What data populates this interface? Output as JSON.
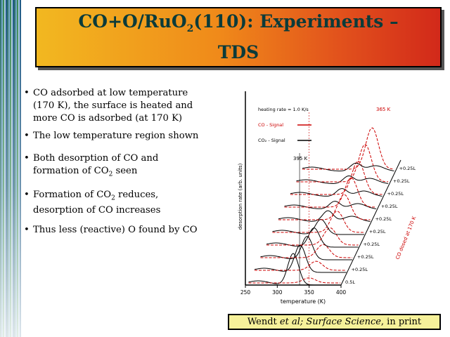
{
  "slide": {
    "title_line1_pre": "CO+O/RuO",
    "title_sub": "2",
    "title_line1_post": "(110): Experiments –",
    "title_line2": "TDS",
    "bullets": [
      {
        "line1": "CO adsorbed at low temperature",
        "line2": "(170 K), the surface is heated and",
        "line3": "more CO is adsorbed (at 170 K)"
      },
      {
        "line1": "The low temperature region shown"
      },
      {
        "line1": "Both desorption of CO and",
        "line2_pre": "formation of CO",
        "line2_sub": "2",
        "line2_post": " seen"
      },
      {
        "line1_pre": "Formation of CO",
        "line1_sub": "2",
        "line1_post": " reduces,",
        "line2": "desorption of CO increases"
      },
      {
        "line1": "Thus less (reactive) O found by CO"
      }
    ],
    "citation": {
      "author": "Wendt ",
      "etal": "et al;",
      "journal": " Surface Science",
      "tail": ", in print"
    }
  },
  "chart_data": {
    "type": "line",
    "title": "",
    "xlabel": "temperature (K)",
    "ylabel": "desorption rate (arb. units)",
    "xticks": [
      "250",
      "300",
      "350",
      "400"
    ],
    "xlim": [
      250,
      400
    ],
    "legend": {
      "heating_rate": "heating rate = 1.0 K/s",
      "co_signal": "CO - Signal",
      "co2_signal": "CO₂ - Signal"
    },
    "annotations": {
      "co2_peak": "395 K",
      "co_peak": "365 K",
      "offset_axis": "CO dosed at 170 K"
    },
    "offset_labels": [
      "0.5L",
      "0.25L",
      "0.25L",
      "0.25L",
      "0.25L",
      "0.25L",
      "0.25L",
      "0.25L",
      "0.25L",
      "0.25L"
    ],
    "colors": {
      "co": "#cc0000",
      "co2": "#000000"
    }
  }
}
